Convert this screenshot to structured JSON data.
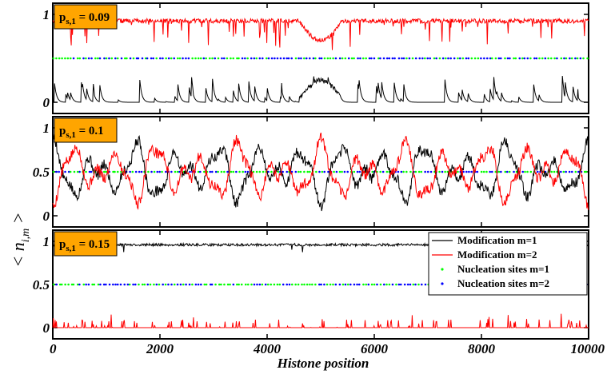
{
  "chart_data": [
    {
      "type": "line",
      "panel_label": "p",
      "panel_label_sub": "s,1",
      "panel_label_value": " = 0.09",
      "xlim": [
        0,
        10000
      ],
      "ylim": [
        0,
        1
      ],
      "y_ticks": [
        {
          "value": 0,
          "label": "0"
        },
        {
          "value": 1,
          "label": "1"
        }
      ],
      "series": [
        {
          "name": "Modification m=1",
          "color": "#000000",
          "baseline": 0.0,
          "amplitude": 0.3,
          "mode": "low-bursts",
          "seed": 11
        },
        {
          "name": "Modification m=2",
          "color": "#ff0000",
          "baseline": 0.95,
          "amplitude": 0.3,
          "mode": "high-dips",
          "seed": 23
        }
      ],
      "nucleation_level": 0.5,
      "nucleation": {
        "m1_color": "#00ff00",
        "m2_color": "#0000ff"
      }
    },
    {
      "type": "line",
      "panel_label": "p",
      "panel_label_sub": "s,1",
      "panel_label_value": " = 0.1",
      "xlim": [
        0,
        10000
      ],
      "ylim": [
        0,
        1
      ],
      "y_ticks": [
        {
          "value": 0,
          "label": "0"
        },
        {
          "value": 0.5,
          "label": "0.5"
        },
        {
          "value": 1,
          "label": "1"
        }
      ],
      "series": [
        {
          "name": "Modification m=1",
          "color": "#000000",
          "baseline": 0.5,
          "amplitude": 0.4,
          "mode": "oscillate",
          "seed": 5
        },
        {
          "name": "Modification m=2",
          "color": "#ff0000",
          "baseline": 0.5,
          "amplitude": 0.4,
          "mode": "oscillate-mirror",
          "seed": 5
        }
      ],
      "nucleation_level": 0.5,
      "nucleation": {
        "m1_color": "#00ff00",
        "m2_color": "#0000ff"
      }
    },
    {
      "type": "line",
      "panel_label": "p",
      "panel_label_sub": "s,1",
      "panel_label_value": " = 0.15",
      "xlim": [
        0,
        10000
      ],
      "ylim": [
        0,
        1
      ],
      "y_ticks": [
        {
          "value": 0,
          "label": "0"
        },
        {
          "value": 0.5,
          "label": "0.5"
        },
        {
          "value": 1,
          "label": "1"
        }
      ],
      "series": [
        {
          "name": "Modification m=1",
          "color": "#000000",
          "baseline": 0.96,
          "amplitude": 0.03,
          "mode": "flat-high",
          "seed": 7
        },
        {
          "name": "Modification m=2",
          "color": "#ff0000",
          "baseline": 0.0,
          "amplitude": 0.1,
          "mode": "spikes",
          "seed": 9
        }
      ],
      "nucleation_level": 0.5,
      "nucleation": {
        "m1_color": "#00ff00",
        "m2_color": "#0000ff"
      },
      "legend_position": "top-right",
      "legend": [
        {
          "label": "Modification m=1",
          "kind": "line",
          "color": "#000000"
        },
        {
          "label": "Modification m=2",
          "kind": "line",
          "color": "#ff0000"
        },
        {
          "label": "Nucleation sites m=1",
          "kind": "dot",
          "color": "#00ff00"
        },
        {
          "label": "Nucleation sites m=2",
          "kind": "dot",
          "color": "#0000ff"
        }
      ]
    }
  ],
  "x_ticks": [
    {
      "value": 0,
      "label": "0"
    },
    {
      "value": 2000,
      "label": "2000"
    },
    {
      "value": 4000,
      "label": "4000"
    },
    {
      "value": 6000,
      "label": "6000"
    },
    {
      "value": 8000,
      "label": "8000"
    },
    {
      "value": 10000,
      "label": "10000"
    }
  ],
  "xlabel": "Histone position",
  "ylabel": "< n",
  "ylabel_sub": "i,m",
  "ylabel_close": " >",
  "colors": {
    "panel_label_bg": "#ffa500",
    "legend_bg": "#ffffff"
  }
}
